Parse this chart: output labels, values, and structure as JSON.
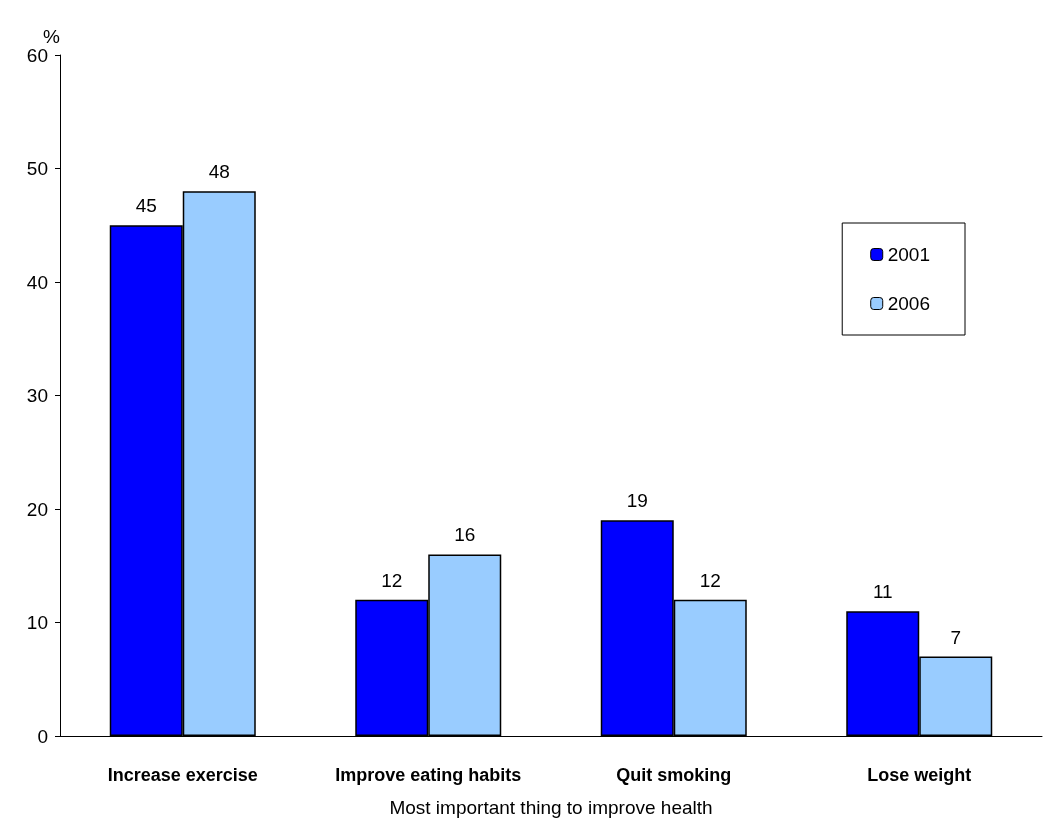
{
  "chart_data": {
    "type": "bar",
    "xlabel": "Most important thing to improve health",
    "ylabel": "%",
    "categories": [
      "Increase exercise",
      "Improve eating habits",
      "Quit smoking",
      "Lose weight"
    ],
    "series": [
      {
        "name": "2001",
        "color": "#0000ff",
        "values": [
          45,
          12,
          19,
          11
        ]
      },
      {
        "name": "2006",
        "color": "#99ccff",
        "values": [
          48,
          16,
          12,
          7
        ]
      }
    ],
    "ylim": [
      0,
      60
    ],
    "yticks": [
      0,
      10,
      20,
      30,
      40,
      50,
      60
    ],
    "grid": false,
    "legend": "right",
    "data_labels": true
  }
}
